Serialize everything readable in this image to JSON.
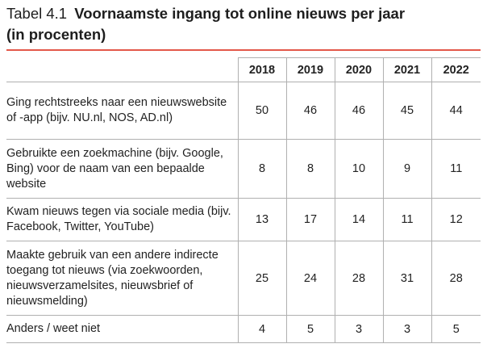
{
  "title": {
    "prefix": "Tabel 4.1",
    "line1": "Voornaamste ingang tot online nieuws per jaar",
    "line2": "(in procenten)"
  },
  "table": {
    "years": [
      "2018",
      "2019",
      "2020",
      "2021",
      "2022"
    ],
    "rows": [
      {
        "label": "Ging rechtstreeks naar een nieuwswebsite of -app (bijv. NU.nl, NOS, AD.nl)",
        "values": [
          "50",
          "46",
          "46",
          "45",
          "44"
        ]
      },
      {
        "label": "Gebruikte een zoekmachine (bijv. Google, Bing) voor de naam van een bepaalde website",
        "values": [
          "8",
          "8",
          "10",
          "9",
          "11"
        ]
      },
      {
        "label": "Kwam nieuws tegen via sociale media (bijv. Facebook, Twitter, YouTube)",
        "values": [
          "13",
          "17",
          "14",
          "11",
          "12"
        ]
      },
      {
        "label": "Maakte gebruik van een andere indirecte toegang tot nieuws (via zoekwoorden, nieuwsverzamelsites, nieuwsbrief of nieuwsmelding)",
        "values": [
          "25",
          "24",
          "28",
          "31",
          "28"
        ]
      },
      {
        "label": "Anders / weet niet",
        "values": [
          "4",
          "5",
          "3",
          "3",
          "5"
        ]
      }
    ]
  },
  "colors": {
    "accent_rule": "#e3584a",
    "grid": "#b0b0b0",
    "text": "#222222"
  }
}
